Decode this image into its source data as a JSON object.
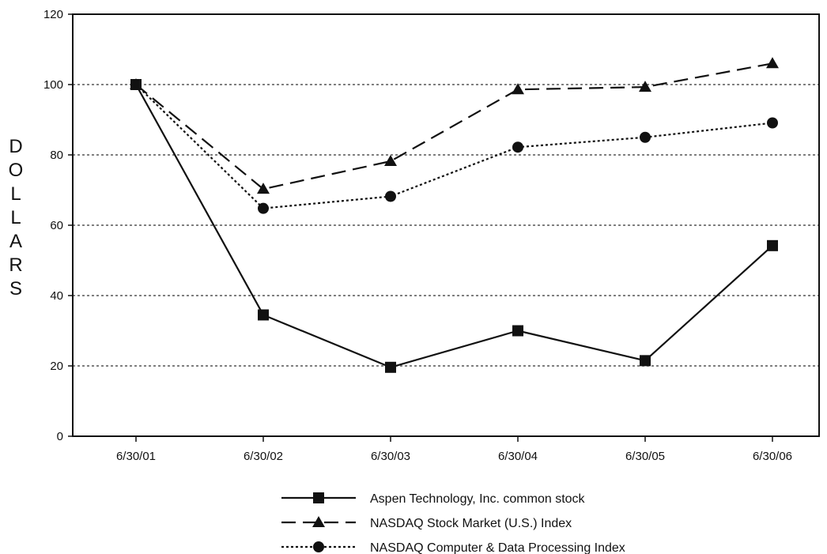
{
  "chart_data": {
    "type": "line",
    "title": "",
    "xlabel": "",
    "ylabel": "DOLLARS",
    "ylim": [
      0,
      120
    ],
    "yticks": [
      0,
      20,
      40,
      60,
      80,
      100,
      120
    ],
    "grid": "horizontal dotted",
    "legend_position": "bottom-center",
    "categories": [
      "6/30/01",
      "6/30/02",
      "6/30/03",
      "6/30/04",
      "6/30/05",
      "6/30/06"
    ],
    "series": [
      {
        "name": "Aspen Technology, Inc. common stock",
        "line_style": "solid",
        "marker": "square",
        "values": [
          100,
          34.5,
          19.6,
          30,
          21.5,
          54.2
        ]
      },
      {
        "name": "NASDAQ Stock Market (U.S.) Index",
        "line_style": "dashed",
        "marker": "triangle",
        "values": [
          100,
          70.3,
          78.2,
          98.6,
          99.3,
          106
        ]
      },
      {
        "name": "NASDAQ Computer & Data Processing Index",
        "line_style": "dotted",
        "marker": "circle",
        "values": [
          100,
          64.8,
          68.2,
          82.2,
          85,
          89.1
        ]
      }
    ]
  },
  "colors": {
    "ink": "#111111",
    "grid": "#555555",
    "background": "#ffffff"
  }
}
